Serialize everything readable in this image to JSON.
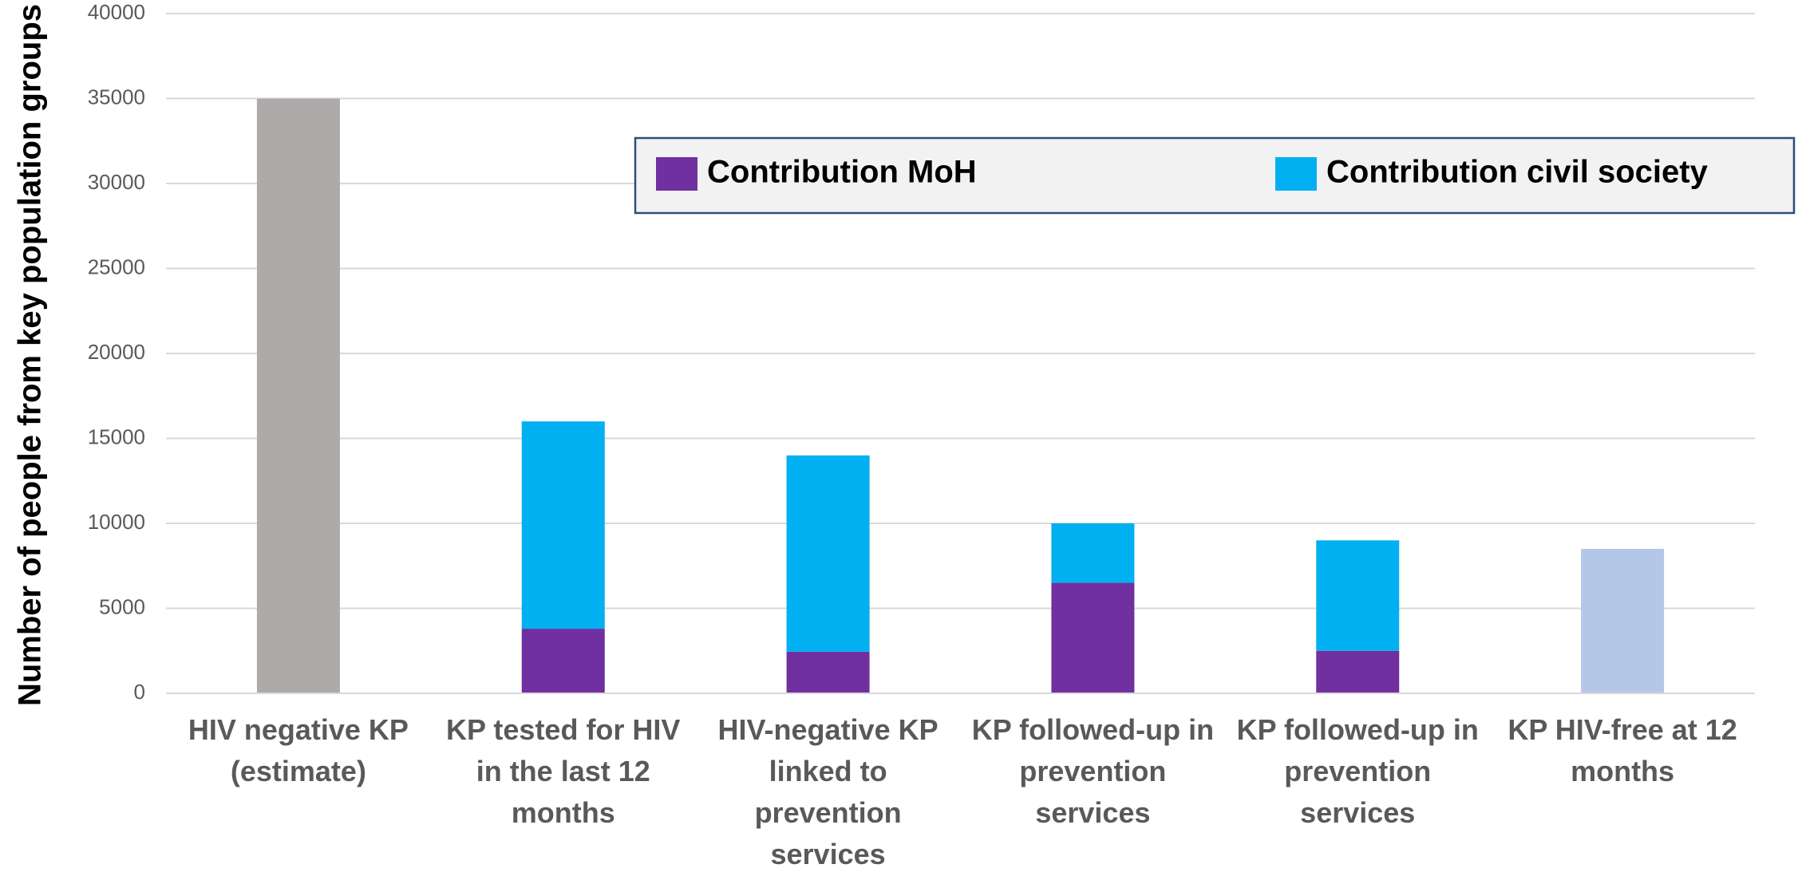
{
  "chart_data": {
    "type": "stacked_bar",
    "y_label": "Number of people from key population groups",
    "categories": [
      "HIV negative KP (estimate)",
      "KP tested for HIV in the last 12 months",
      "HIV-negative KP linked to prevention services",
      "KP followed-up in prevention services",
      "KP followed-up in prevention services",
      "KP HIV-free at 12 months"
    ],
    "totals": {
      "values": [
        35000,
        null,
        null,
        null,
        null,
        8500
      ],
      "colors": [
        "#aeaaaa",
        null,
        null,
        null,
        null,
        "#b4c7e7"
      ]
    },
    "series": [
      {
        "name": "Contribution MoH",
        "color": "#7030a0",
        "values": [
          null,
          3800,
          2450,
          6500,
          2500,
          null
        ]
      },
      {
        "name": "Contribution civil society",
        "color": "#00b0f0",
        "values": [
          null,
          12200,
          11550,
          3500,
          6500,
          null
        ]
      }
    ],
    "ylim": [
      0,
      40000
    ],
    "yticks": [
      0,
      5000,
      10000,
      15000,
      20000,
      25000,
      30000,
      35000,
      40000
    ],
    "grid": true,
    "legend": "top-right"
  }
}
